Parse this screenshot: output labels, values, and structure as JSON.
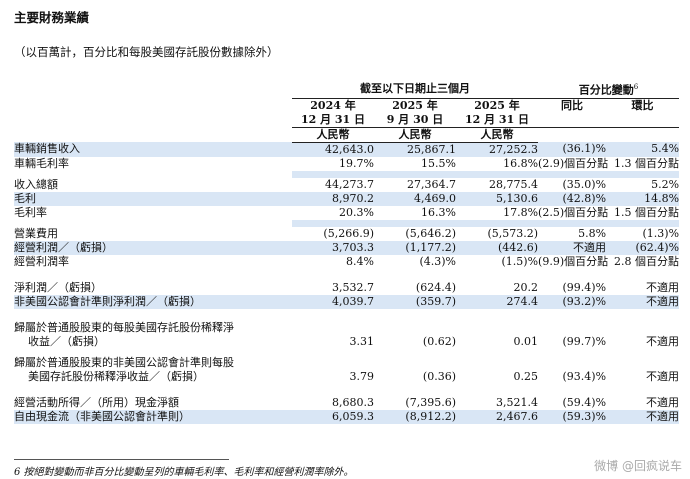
{
  "title": "主要財務業績",
  "subtitle": "（以百萬計，百分比和每股美國存託股份數據除外）",
  "header": {
    "period_group": "截至以下日期止三個月",
    "change_group": "百分比變動",
    "change_sup": "6",
    "col1_year": "2024 年",
    "col1_date": "12 月 31 日",
    "col2_year": "2025 年",
    "col2_date": "9 月 30 日",
    "col3_year": "2025 年",
    "col3_date": "12 月 31 日",
    "yoy": "同比",
    "qoq": "環比",
    "currency": "人民幣"
  },
  "rows": [
    {
      "label": "車輛銷售收入",
      "v1": "42,643.0",
      "v2": "25,867.1",
      "v3": "27,252.3",
      "yoy": "(36.1)%",
      "qoq": "5.4%"
    },
    {
      "label": "車輛毛利率",
      "v1": "19.7%",
      "v2": "15.5%",
      "v3": "16.8%",
      "yoy": "(2.9)個百分點",
      "qoq": "1.3 個百分點"
    },
    {
      "label": "收入總額",
      "v1": "44,273.7",
      "v2": "27,364.7",
      "v3": "28,775.4",
      "yoy": "(35.0)%",
      "qoq": "5.2%"
    },
    {
      "label": "毛利",
      "v1": "8,970.2",
      "v2": "4,469.0",
      "v3": "5,130.6",
      "yoy": "(42.8)%",
      "qoq": "14.8%"
    },
    {
      "label": "毛利率",
      "v1": "20.3%",
      "v2": "16.3%",
      "v3": "17.8%",
      "yoy": "(2.5)個百分點",
      "qoq": "1.5 個百分點"
    },
    {
      "label": "營業費用",
      "v1": "(5,266.9)",
      "v2": "(5,646.2)",
      "v3": "(5,573.2)",
      "yoy": "5.8%",
      "qoq": "(1.3)%"
    },
    {
      "label": "經營利潤／（虧損）",
      "v1": "3,703.3",
      "v2": "(1,177.2)",
      "v3": "(442.6)",
      "yoy": "不適用",
      "qoq": "(62.4)%"
    },
    {
      "label": "經營利潤率",
      "v1": "8.4%",
      "v2": "(4.3)%",
      "v3": "(1.5)%",
      "yoy": "(9.9)個百分點",
      "qoq": "2.8 個百分點"
    },
    {
      "label": "淨利潤／（虧損）",
      "v1": "3,532.7",
      "v2": "(624.4)",
      "v3": "20.2",
      "yoy": "(99.4)%",
      "qoq": "不適用"
    },
    {
      "label": "非美國公認會計準則淨利潤／（虧損）",
      "v1": "4,039.7",
      "v2": "(359.7)",
      "v3": "274.4",
      "yoy": "(93.2)%",
      "qoq": "不適用"
    },
    {
      "label": "歸屬於普通股股東的每股美國存託股份稀釋淨",
      "label2": "收益／（虧損）",
      "v1": "3.31",
      "v2": "(0.62)",
      "v3": "0.01",
      "yoy": "(99.7)%",
      "qoq": "不適用"
    },
    {
      "label": "歸屬於普通股股東的非美國公認會計準則每股",
      "label2": "美國存託股份稀釋淨收益／（虧損）",
      "v1": "3.79",
      "v2": "(0.36)",
      "v3": "0.25",
      "yoy": "(93.4)%",
      "qoq": "不適用"
    },
    {
      "label": "經營活動所得／（所用）現金淨額",
      "v1": "8,680.3",
      "v2": "(7,395.6)",
      "v3": "3,521.4",
      "yoy": "(59.4)%",
      "qoq": "不適用"
    },
    {
      "label": "自由現金流（非美國公認會計準則）",
      "v1": "6,059.3",
      "v2": "(8,912.2)",
      "v3": "2,467.6",
      "yoy": "(59.3)%",
      "qoq": "不適用"
    }
  ],
  "footnote": "6 按絕對變動而非百分比變動呈列的車輛毛利率、毛利率和經營利潤率除外。",
  "watermark": "微博 @回疯说车"
}
